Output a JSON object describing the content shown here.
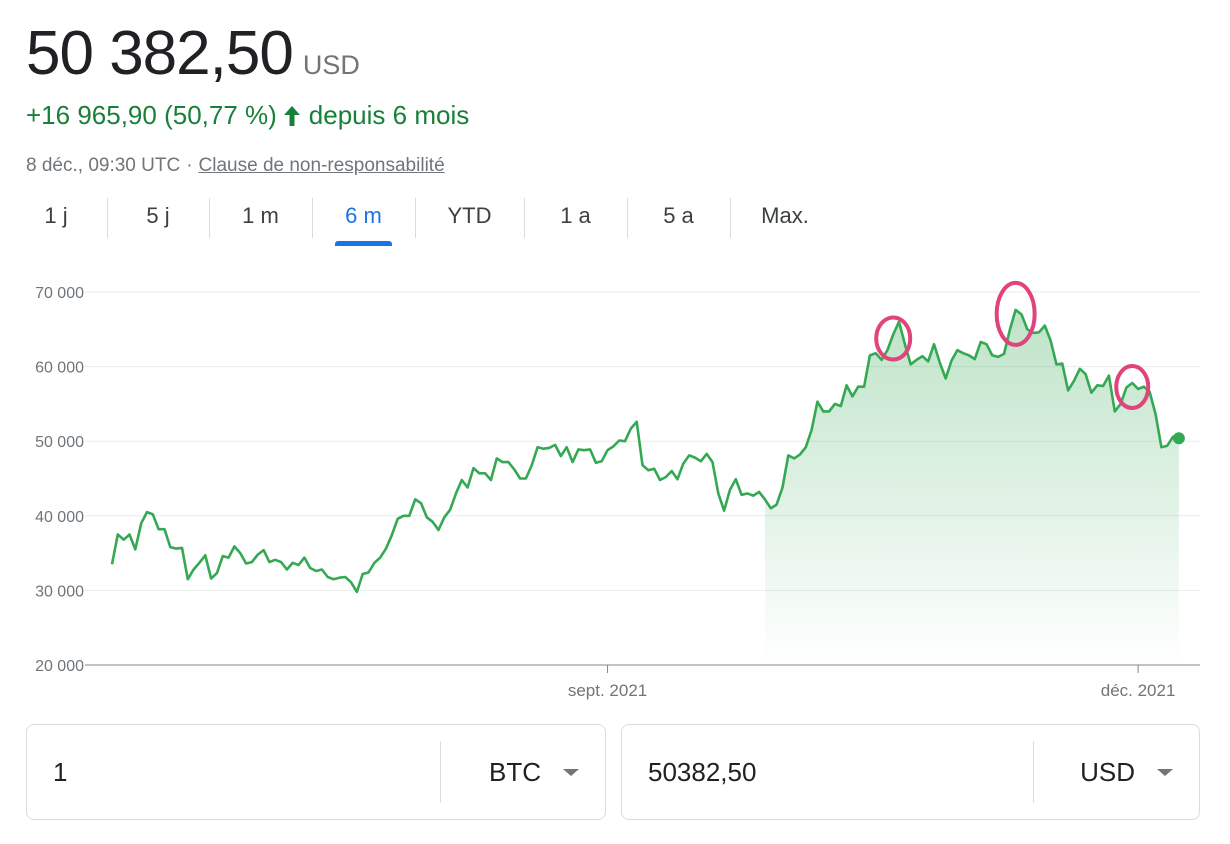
{
  "quote": {
    "price": "50 382,50",
    "currency": "USD",
    "change": "+16 965,90 (50,77 %)",
    "period": "depuis 6 mois",
    "timestamp": "8 déc., 09:30 UTC",
    "separator": "·",
    "disclaimer": "Clause de non-responsabilité"
  },
  "tabs": [
    {
      "label": "1 j",
      "active": false
    },
    {
      "label": "5 j",
      "active": false
    },
    {
      "label": "1 m",
      "active": false
    },
    {
      "label": "6 m",
      "active": true
    },
    {
      "label": "YTD",
      "active": false
    },
    {
      "label": "1 a",
      "active": false
    },
    {
      "label": "5 a",
      "active": false
    },
    {
      "label": "Max.",
      "active": false
    }
  ],
  "converter": {
    "from_value": "1",
    "from_currency": "BTC",
    "to_value": "50382,50",
    "to_currency": "USD"
  },
  "colors": {
    "up": "#188038",
    "line": "#34a853",
    "accent": "#1a73e8",
    "highlight_circle": "#e0447a"
  },
  "chart_data": {
    "type": "area",
    "y_ticks": [
      "70 000",
      "60 000",
      "50 000",
      "40 000",
      "30 000",
      "20 000"
    ],
    "y_tick_values": [
      70000,
      60000,
      50000,
      40000,
      30000,
      20000
    ],
    "ylim": [
      20000,
      70000
    ],
    "x_labels": [
      {
        "label": "sept. 2021",
        "date": "2021-09-01"
      },
      {
        "label": "déc. 2021",
        "date": "2021-12-01"
      }
    ],
    "grid": true,
    "series": [
      {
        "x": [
          "2021-06-08",
          "2021-06-09",
          "2021-06-10",
          "2021-06-11",
          "2021-06-12",
          "2021-06-13",
          "2021-06-14",
          "2021-06-15",
          "2021-06-16",
          "2021-06-17",
          "2021-06-18",
          "2021-06-19",
          "2021-06-20",
          "2021-06-21",
          "2021-06-22",
          "2021-06-23",
          "2021-06-24",
          "2021-06-25",
          "2021-06-26",
          "2021-06-27",
          "2021-06-28",
          "2021-06-29",
          "2021-06-30",
          "2021-07-01",
          "2021-07-02",
          "2021-07-03",
          "2021-07-04",
          "2021-07-05",
          "2021-07-06",
          "2021-07-07",
          "2021-07-08",
          "2021-07-09",
          "2021-07-10",
          "2021-07-11",
          "2021-07-12",
          "2021-07-13",
          "2021-07-14",
          "2021-07-15",
          "2021-07-16",
          "2021-07-17",
          "2021-07-18",
          "2021-07-19",
          "2021-07-20",
          "2021-07-21",
          "2021-07-22",
          "2021-07-23",
          "2021-07-24",
          "2021-07-25",
          "2021-07-26",
          "2021-07-27",
          "2021-07-28",
          "2021-07-29",
          "2021-07-30",
          "2021-07-31",
          "2021-08-01",
          "2021-08-02",
          "2021-08-03",
          "2021-08-04",
          "2021-08-05",
          "2021-08-06",
          "2021-08-07",
          "2021-08-08",
          "2021-08-09",
          "2021-08-10",
          "2021-08-11",
          "2021-08-12",
          "2021-08-13",
          "2021-08-14",
          "2021-08-15",
          "2021-08-16",
          "2021-08-17",
          "2021-08-18",
          "2021-08-19",
          "2021-08-20",
          "2021-08-21",
          "2021-08-22",
          "2021-08-23",
          "2021-08-24",
          "2021-08-25",
          "2021-08-26",
          "2021-08-27",
          "2021-08-28",
          "2021-08-29",
          "2021-08-30",
          "2021-08-31",
          "2021-09-01",
          "2021-09-02",
          "2021-09-03",
          "2021-09-04",
          "2021-09-05",
          "2021-09-06",
          "2021-09-07",
          "2021-09-08",
          "2021-09-09",
          "2021-09-10",
          "2021-09-11",
          "2021-09-12",
          "2021-09-13",
          "2021-09-14",
          "2021-09-15",
          "2021-09-16",
          "2021-09-17",
          "2021-09-18",
          "2021-09-19",
          "2021-09-20",
          "2021-09-21",
          "2021-09-22",
          "2021-09-23",
          "2021-09-24",
          "2021-09-25",
          "2021-09-26",
          "2021-09-27",
          "2021-09-28",
          "2021-09-29",
          "2021-09-30",
          "2021-10-01",
          "2021-10-02",
          "2021-10-03",
          "2021-10-04",
          "2021-10-05",
          "2021-10-06",
          "2021-10-07",
          "2021-10-08",
          "2021-10-09",
          "2021-10-10",
          "2021-10-11",
          "2021-10-12",
          "2021-10-13",
          "2021-10-14",
          "2021-10-15",
          "2021-10-16",
          "2021-10-17",
          "2021-10-18",
          "2021-10-19",
          "2021-10-20",
          "2021-10-21",
          "2021-10-22",
          "2021-10-23",
          "2021-10-24",
          "2021-10-25",
          "2021-10-26",
          "2021-10-27",
          "2021-10-28",
          "2021-10-29",
          "2021-10-30",
          "2021-10-31",
          "2021-11-01",
          "2021-11-02",
          "2021-11-03",
          "2021-11-04",
          "2021-11-05",
          "2021-11-06",
          "2021-11-07",
          "2021-11-08",
          "2021-11-09",
          "2021-11-10",
          "2021-11-11",
          "2021-11-12",
          "2021-11-13",
          "2021-11-14",
          "2021-11-15",
          "2021-11-16",
          "2021-11-17",
          "2021-11-18",
          "2021-11-19",
          "2021-11-20",
          "2021-11-21",
          "2021-11-22",
          "2021-11-23",
          "2021-11-24",
          "2021-11-25",
          "2021-11-26",
          "2021-11-27",
          "2021-11-28",
          "2021-11-29",
          "2021-11-30",
          "2021-12-01",
          "2021-12-02",
          "2021-12-03",
          "2021-12-04",
          "2021-12-05",
          "2021-12-06",
          "2021-12-07",
          "2021-12-08"
        ],
        "values": [
          33500,
          37500,
          36800,
          37500,
          35500,
          39000,
          40500,
          40200,
          38200,
          38200,
          35800,
          35600,
          35700,
          31500,
          32800,
          33700,
          34700,
          31600,
          32300,
          34600,
          34400,
          35900,
          35000,
          33600,
          33800,
          34800,
          35400,
          33800,
          34100,
          33800,
          32800,
          33700,
          33400,
          34400,
          33000,
          32600,
          32800,
          31800,
          31500,
          31700,
          31800,
          31100,
          29800,
          32200,
          32400,
          33700,
          34400,
          35600,
          37400,
          39600,
          40000,
          40000,
          42200,
          41700,
          39800,
          39200,
          38100,
          39800,
          40800,
          43000,
          44800,
          43800,
          46400,
          45700,
          45700,
          44800,
          47700,
          47200,
          47200,
          46200,
          45000,
          45000,
          46800,
          49200,
          49000,
          49100,
          49500,
          48000,
          49200,
          47200,
          48900,
          48800,
          48900,
          47100,
          47300,
          48800,
          49300,
          50100,
          50000,
          51700,
          52600,
          46800,
          46100,
          46300,
          44800,
          45200,
          46000,
          44900,
          47000,
          48100,
          47800,
          47300,
          48300,
          47200,
          43000,
          40700,
          43500,
          44900,
          42800,
          43000,
          42700,
          43200,
          42200,
          41000,
          41500,
          43800,
          48100,
          47700,
          48200,
          49200,
          51500,
          55300,
          54000,
          54000,
          55000,
          54700,
          57500,
          56000,
          57300,
          57300,
          61500,
          61800,
          60900,
          62200,
          64300,
          66000,
          63000,
          60300,
          60900,
          61400,
          60700,
          63000,
          60500,
          58400,
          60800,
          62200,
          61800,
          61500,
          61000,
          63300,
          63000,
          61500,
          61300,
          61700,
          64900,
          67600,
          67000,
          65000,
          64500,
          64600,
          65500,
          63500,
          60300,
          60400,
          56800,
          58100,
          59700,
          59000,
          56500,
          57500,
          57400,
          58800,
          54000,
          55000,
          57200,
          57800,
          57000,
          57300,
          56600,
          53600,
          49200,
          49400,
          50600,
          50400
        ]
      }
    ]
  }
}
